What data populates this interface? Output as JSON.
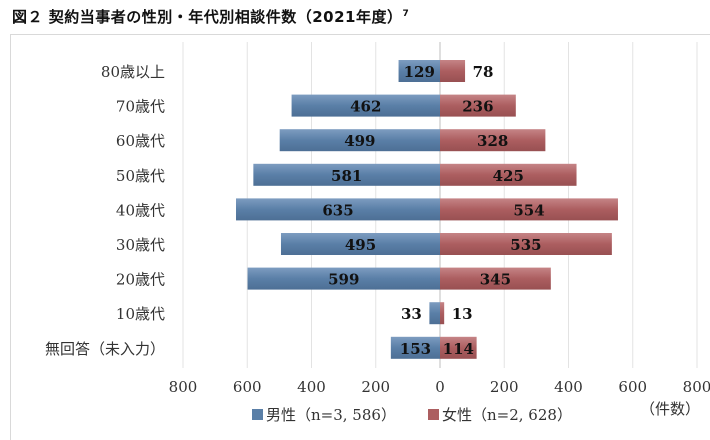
{
  "chart_data": {
    "type": "bar",
    "orientation": "horizontal-population-pyramid",
    "title": "図２ 契約当事者の性別・年代別相談件数（2021年度）",
    "title_footnote": "7",
    "categories": [
      "80歳以上",
      "70歳代",
      "60歳代",
      "50歳代",
      "40歳代",
      "30歳代",
      "20歳代",
      "10歳代",
      "無回答（未入力）"
    ],
    "series": [
      {
        "name": "男性（n=3, 586）",
        "side": "left",
        "color": "#5a7fa7",
        "values": [
          129,
          462,
          499,
          581,
          635,
          495,
          599,
          33,
          153
        ]
      },
      {
        "name": "女性（n=2, 628）",
        "side": "right",
        "color": "#ac5e60",
        "values": [
          78,
          236,
          328,
          425,
          554,
          535,
          345,
          13,
          114
        ]
      }
    ],
    "xlim": [
      -800,
      800
    ],
    "x_ticks": [
      800,
      600,
      400,
      200,
      0,
      200,
      400,
      600,
      800
    ],
    "xlabel": "（件数）",
    "grid": true,
    "legend": "bottom"
  }
}
